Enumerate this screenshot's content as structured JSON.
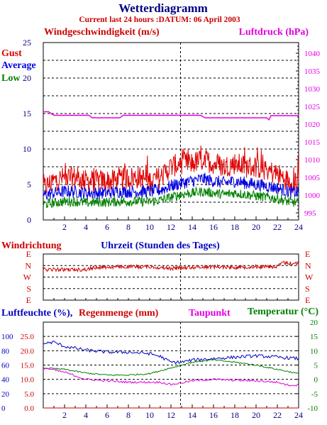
{
  "header": {
    "title": "Wetterdiagramm",
    "subtitle": "Current last 24 hours :DATUM: 06 April 2003"
  },
  "colors": {
    "title": "#000080",
    "subtitle": "#cc0000",
    "gust": "#e00000",
    "average": "#0000e0",
    "low": "#008000",
    "pressure": "#e000e0",
    "wind_direction": "#cc0000",
    "humidity": "#0000c0",
    "rain": "#cc0000",
    "dewpoint": "#e000e0",
    "temperature": "#008000",
    "axis": "#000000",
    "grid": "#000000"
  },
  "chart_data": [
    {
      "type": "line",
      "title": "",
      "left_label": "Windgeschwindigkeit (m/s)",
      "right_label": "Luftdruck (hPa)",
      "left_ylim": [
        0,
        25
      ],
      "left_ticks": [
        "0",
        "5",
        "10",
        "15",
        "20",
        "25"
      ],
      "right_ylim": [
        993,
        1043
      ],
      "right_ticks": [
        "995",
        "1000",
        "1005",
        "1010",
        "1015",
        "1020",
        "1025",
        "1030",
        "1035",
        "1040"
      ],
      "xlim": [
        0,
        24
      ],
      "x_ticks": [
        "2",
        "4",
        "6",
        "8",
        "10",
        "12",
        "14",
        "16",
        "18",
        "20",
        "22",
        "24"
      ],
      "marker_x": 12.9,
      "grid": true,
      "legend": [
        "Gust",
        "Average",
        "Low"
      ],
      "series": [
        {
          "name": "Gust",
          "axis": "left",
          "x": [
            0,
            1,
            2,
            3,
            4,
            5,
            6,
            7,
            8,
            9,
            10,
            11,
            12,
            13,
            14,
            15,
            16,
            17,
            18,
            19,
            20,
            21,
            22,
            23,
            24
          ],
          "values": [
            4.5,
            5.5,
            6,
            6,
            5.5,
            5.5,
            5.5,
            5.5,
            6,
            6,
            5.5,
            6,
            7.5,
            8,
            8,
            8.5,
            8,
            7.5,
            8,
            7.5,
            7.5,
            7,
            6.5,
            5.5,
            5.5
          ]
        },
        {
          "name": "Average",
          "axis": "left",
          "x": [
            0,
            1,
            2,
            3,
            4,
            5,
            6,
            7,
            8,
            9,
            10,
            11,
            12,
            13,
            14,
            15,
            16,
            17,
            18,
            19,
            20,
            21,
            22,
            23,
            24
          ],
          "values": [
            3.5,
            3.8,
            4,
            4,
            3.8,
            3.8,
            3.8,
            4,
            4,
            4,
            4,
            4.2,
            4.8,
            5.2,
            5.5,
            5.8,
            5.5,
            5.2,
            5.5,
            5.2,
            5,
            4.8,
            4.5,
            4,
            3.8
          ]
        },
        {
          "name": "Low",
          "axis": "left",
          "x": [
            0,
            1,
            2,
            3,
            4,
            5,
            6,
            7,
            8,
            9,
            10,
            11,
            12,
            13,
            14,
            15,
            16,
            17,
            18,
            19,
            20,
            21,
            22,
            23,
            24
          ],
          "values": [
            2.2,
            2.4,
            2.6,
            2.6,
            2.4,
            2.5,
            2.5,
            2.6,
            2.6,
            2.6,
            2.6,
            2.8,
            3.2,
            3.6,
            3.8,
            4,
            3.8,
            3.6,
            3.8,
            3.6,
            3.4,
            3.2,
            3,
            2.6,
            2.4
          ]
        },
        {
          "name": "Luftdruck",
          "axis": "right",
          "x": [
            0,
            0.5,
            1,
            4.3,
            4.6,
            7.2,
            7.5,
            14.8,
            15.2,
            20.7,
            21,
            21.2,
            21.4,
            21.6,
            24
          ],
          "values": [
            1023.5,
            1023.5,
            1022.5,
            1022.5,
            1021.8,
            1021.8,
            1022.5,
            1022.5,
            1021.8,
            1021.8,
            1021.8,
            1021.2,
            1022.4,
            1022.4,
            1022.4
          ]
        }
      ]
    },
    {
      "type": "line",
      "title": "",
      "xlabel": "Uhrzeit (Stunden des Tages)",
      "left_label": "Windrichtung",
      "y_categories": [
        "E",
        "N",
        "W",
        "S",
        "E"
      ],
      "xlim": [
        0,
        24
      ],
      "marker_x": 12.9,
      "grid": true,
      "series": [
        {
          "name": "Windrichtung",
          "x": [
            0,
            4,
            5,
            10,
            12,
            14,
            16,
            18,
            20,
            22,
            22.5,
            23,
            24
          ],
          "values": [
            1.35,
            1.35,
            1.15,
            1.1,
            1.25,
            1.15,
            1.1,
            1.15,
            1.1,
            1.1,
            0.75,
            0.8,
            0.8
          ]
        }
      ]
    },
    {
      "type": "line",
      "title": "",
      "labels": {
        "humidity": "Luftfeuchte (%),",
        "rain": "Regenmenge (mm)",
        "dewpoint": "Taupunkt",
        "temperature": "Temperatur (°C)"
      },
      "left_outer_ticks": [
        "0",
        "20",
        "40",
        "60",
        "80",
        "100"
      ],
      "left_inner_ticks": [
        "0.0",
        "5.0",
        "10.0",
        "15.0",
        "20.0",
        "25.0"
      ],
      "right_ticks": [
        "-10",
        "-5",
        "0",
        "5",
        "10",
        "15",
        "20"
      ],
      "temperature_ylim": [
        -10,
        20
      ],
      "xlim": [
        0,
        24
      ],
      "x_ticks": [
        "2",
        "4",
        "6",
        "8",
        "10",
        "12",
        "14",
        "16",
        "18",
        "20",
        "22",
        "24"
      ],
      "marker_x": 12.9,
      "grid": true,
      "series": [
        {
          "name": "Luftfeuchte",
          "axis": "humidity",
          "x": [
            0,
            1,
            2,
            4,
            6,
            8,
            10,
            11,
            12,
            13,
            14,
            16,
            18,
            20,
            22,
            24
          ],
          "values": [
            90,
            92,
            86,
            81,
            78,
            78,
            76,
            72,
            64,
            64,
            67,
            69,
            71,
            73,
            71,
            69
          ]
        },
        {
          "name": "Temperatur",
          "axis": "temperature",
          "x": [
            0,
            2,
            4,
            6,
            8,
            10,
            12,
            14,
            16,
            18,
            20,
            22,
            24
          ],
          "values": [
            4,
            3.5,
            2.2,
            1.5,
            1.5,
            2,
            4,
            6,
            6.8,
            6,
            5,
            3.5,
            2
          ]
        },
        {
          "name": "Taupunkt",
          "axis": "temperature",
          "x": [
            0,
            2,
            4,
            6,
            8,
            10,
            11,
            12,
            12.5,
            13,
            14,
            16,
            18,
            20,
            22,
            23,
            24
          ],
          "values": [
            4,
            2.5,
            0,
            -0.5,
            -1,
            -1,
            -1,
            -1.8,
            -1.5,
            -1.2,
            -0.5,
            0,
            -0.3,
            -0.5,
            -1,
            -2,
            -2
          ]
        },
        {
          "name": "Regenmenge",
          "axis": "rain",
          "x": [
            0,
            24
          ],
          "values": [
            0,
            0
          ]
        }
      ]
    }
  ]
}
